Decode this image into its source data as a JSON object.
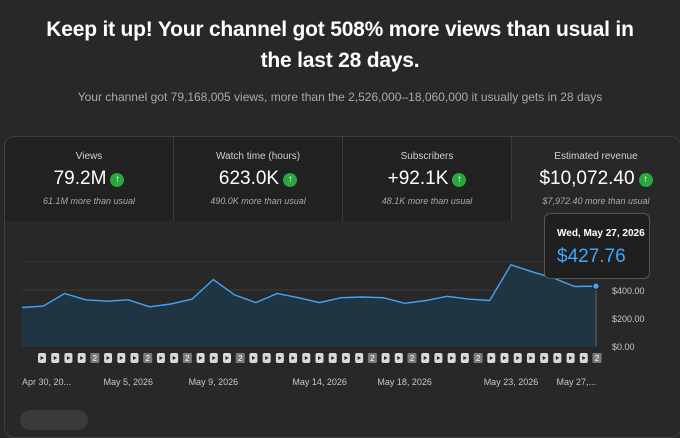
{
  "headline": {
    "line1": "Keep it up! Your channel got 508% more views than usual in",
    "line2": "the last 28 days."
  },
  "subline": "Your channel got 79,168,005 views, more than the 2,526,000–18,060,000 it usually gets in 28 days",
  "metrics": [
    {
      "title": "Views",
      "value": "79.2M",
      "delta": "61.1M more than usual",
      "icon": "arrow-up-icon"
    },
    {
      "title": "Watch time (hours)",
      "value": "623.0K",
      "delta": "490.0K more than usual",
      "icon": "arrow-up-icon"
    },
    {
      "title": "Subscribers",
      "value": "+92.1K",
      "delta": "48.1K more than usual",
      "icon": "arrow-up-icon"
    },
    {
      "title": "Estimated revenue",
      "value": "$10,072.40",
      "delta": "$7,972.40 more than usual",
      "icon": "arrow-up-icon",
      "active": true
    }
  ],
  "tooltip": {
    "date": "Wed, May 27, 2026",
    "value": "$427.76"
  },
  "colors": {
    "line": "#3ea6ff",
    "up_badge": "#2ba640",
    "area": "#1f3645"
  },
  "chart_data": {
    "type": "area",
    "series_label": "Estimated revenue",
    "x": [
      "Apr 30",
      "May 1",
      "May 2",
      "May 3",
      "May 4",
      "May 5",
      "May 6",
      "May 7",
      "May 8",
      "May 9",
      "May 10",
      "May 11",
      "May 12",
      "May 13",
      "May 14",
      "May 15",
      "May 16",
      "May 17",
      "May 18",
      "May 19",
      "May 20",
      "May 21",
      "May 22",
      "May 23",
      "May 24",
      "May 25",
      "May 26",
      "May 27"
    ],
    "values": [
      275,
      285,
      375,
      330,
      320,
      330,
      280,
      300,
      335,
      475,
      365,
      310,
      375,
      345,
      310,
      345,
      350,
      345,
      305,
      325,
      355,
      335,
      325,
      580,
      530,
      485,
      425,
      427.76
    ],
    "y_ticks": [
      "$0.00",
      "$200.00",
      "$400.00"
    ],
    "y_tick_values": [
      0,
      200,
      400
    ],
    "ylim": [
      0,
      720
    ],
    "x_tick_labels": [
      "Apr 30, 20...",
      "May 5, 2026",
      "May 9, 2026",
      "May 14, 2026",
      "May 18, 2026",
      "May 23, 2026",
      "May 27,..."
    ],
    "x_tick_index": [
      0,
      5,
      9,
      14,
      18,
      23,
      27
    ],
    "markers": [
      "s",
      "s",
      "s",
      "s",
      "2",
      "s",
      "s",
      "s",
      "2",
      "s",
      "s",
      "2",
      "s",
      "s",
      "s",
      "2",
      "s",
      "s",
      "s",
      "s",
      "s",
      "s",
      "s",
      "s",
      "s",
      "2",
      "s",
      "s",
      "2",
      "s",
      "s",
      "s",
      "s",
      "2",
      "s",
      "s",
      "s",
      "s",
      "s",
      "s",
      "s",
      "s",
      "2"
    ],
    "grid": true
  }
}
